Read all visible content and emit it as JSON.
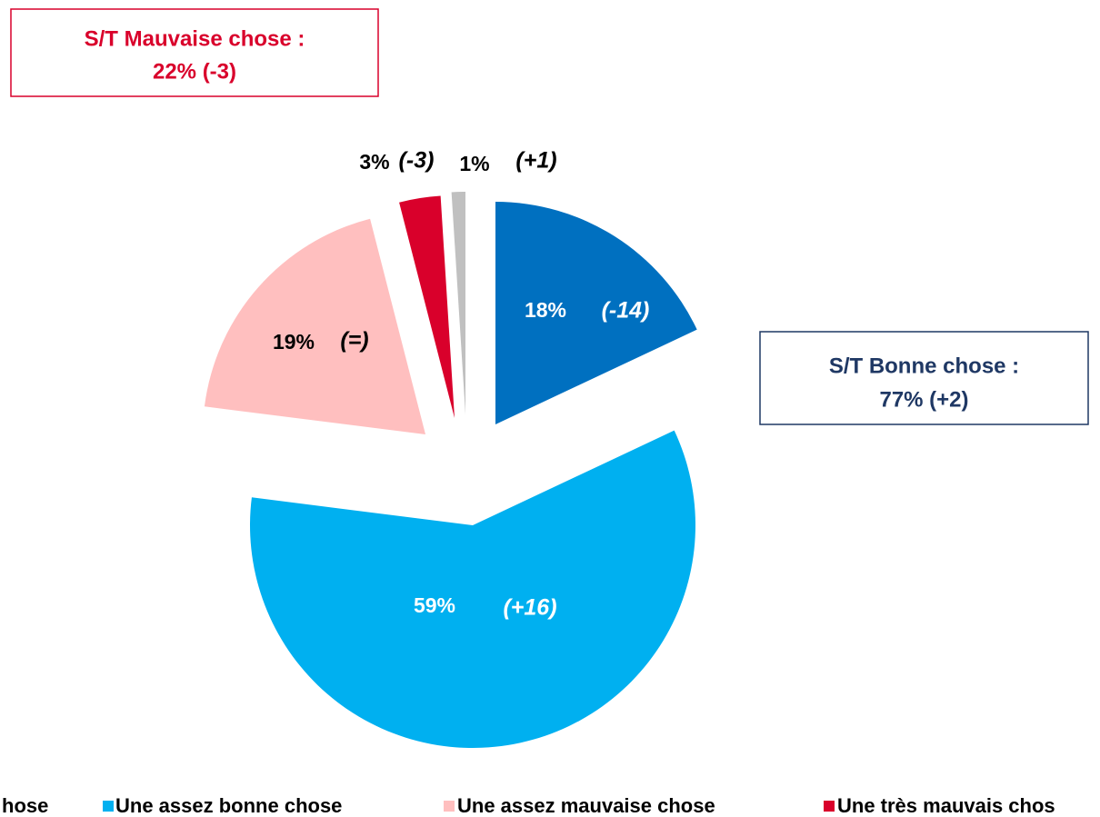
{
  "chart_data": {
    "type": "pie",
    "categories": [
      "hose",
      "Une assez bonne chose",
      "Une assez mauvaise chose",
      "Une très mauvais chos",
      null
    ],
    "values": [
      18,
      59,
      19,
      3,
      1
    ],
    "value_labels": [
      "18%",
      "59%",
      "19%",
      "3%",
      "1%"
    ],
    "changes": [
      "(-14)",
      "(+16)",
      "(=)",
      "(-3)",
      "(+1)"
    ],
    "colors": [
      "#0070c0",
      "#00b0f0",
      "#ffbfbf",
      "#d9002b",
      "#c0c0c0"
    ],
    "annotations": [
      {
        "lines": [
          "S/T Mauvaise chose :",
          "22% (-3)"
        ],
        "color": "#d9002b"
      },
      {
        "lines": [
          "S/T Bonne chose :",
          "77% (+2)"
        ],
        "color": "#1f3864"
      }
    ]
  }
}
